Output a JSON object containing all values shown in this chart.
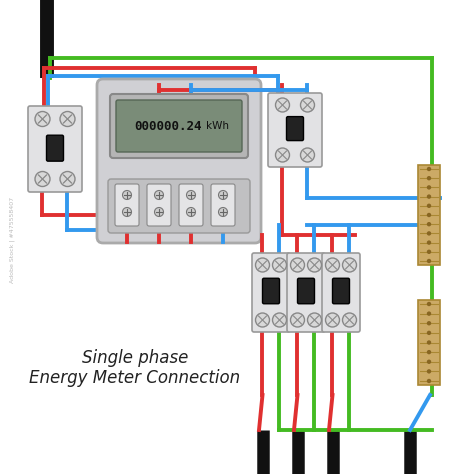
{
  "bg_color": "#ffffff",
  "wire_red": "#e03030",
  "wire_blue": "#3399ee",
  "wire_green": "#44bb22",
  "wire_black": "#111111",
  "meter_body": "#d0d0d4",
  "meter_display_bg": "#b0b0b0",
  "meter_display_inner": "#6a7a6a",
  "breaker_body": "#e2e2e4",
  "breaker_handle": "#222222",
  "terminal_color": "#ccaa66",
  "terminal_dark": "#aa8833",
  "title_line1": "Single phase",
  "title_line2": "Energy Meter Connection",
  "display_text": "000000.24",
  "display_unit": "kWh",
  "watermark": "475558407",
  "lw_wire": 2.8,
  "lw_cable": 8
}
